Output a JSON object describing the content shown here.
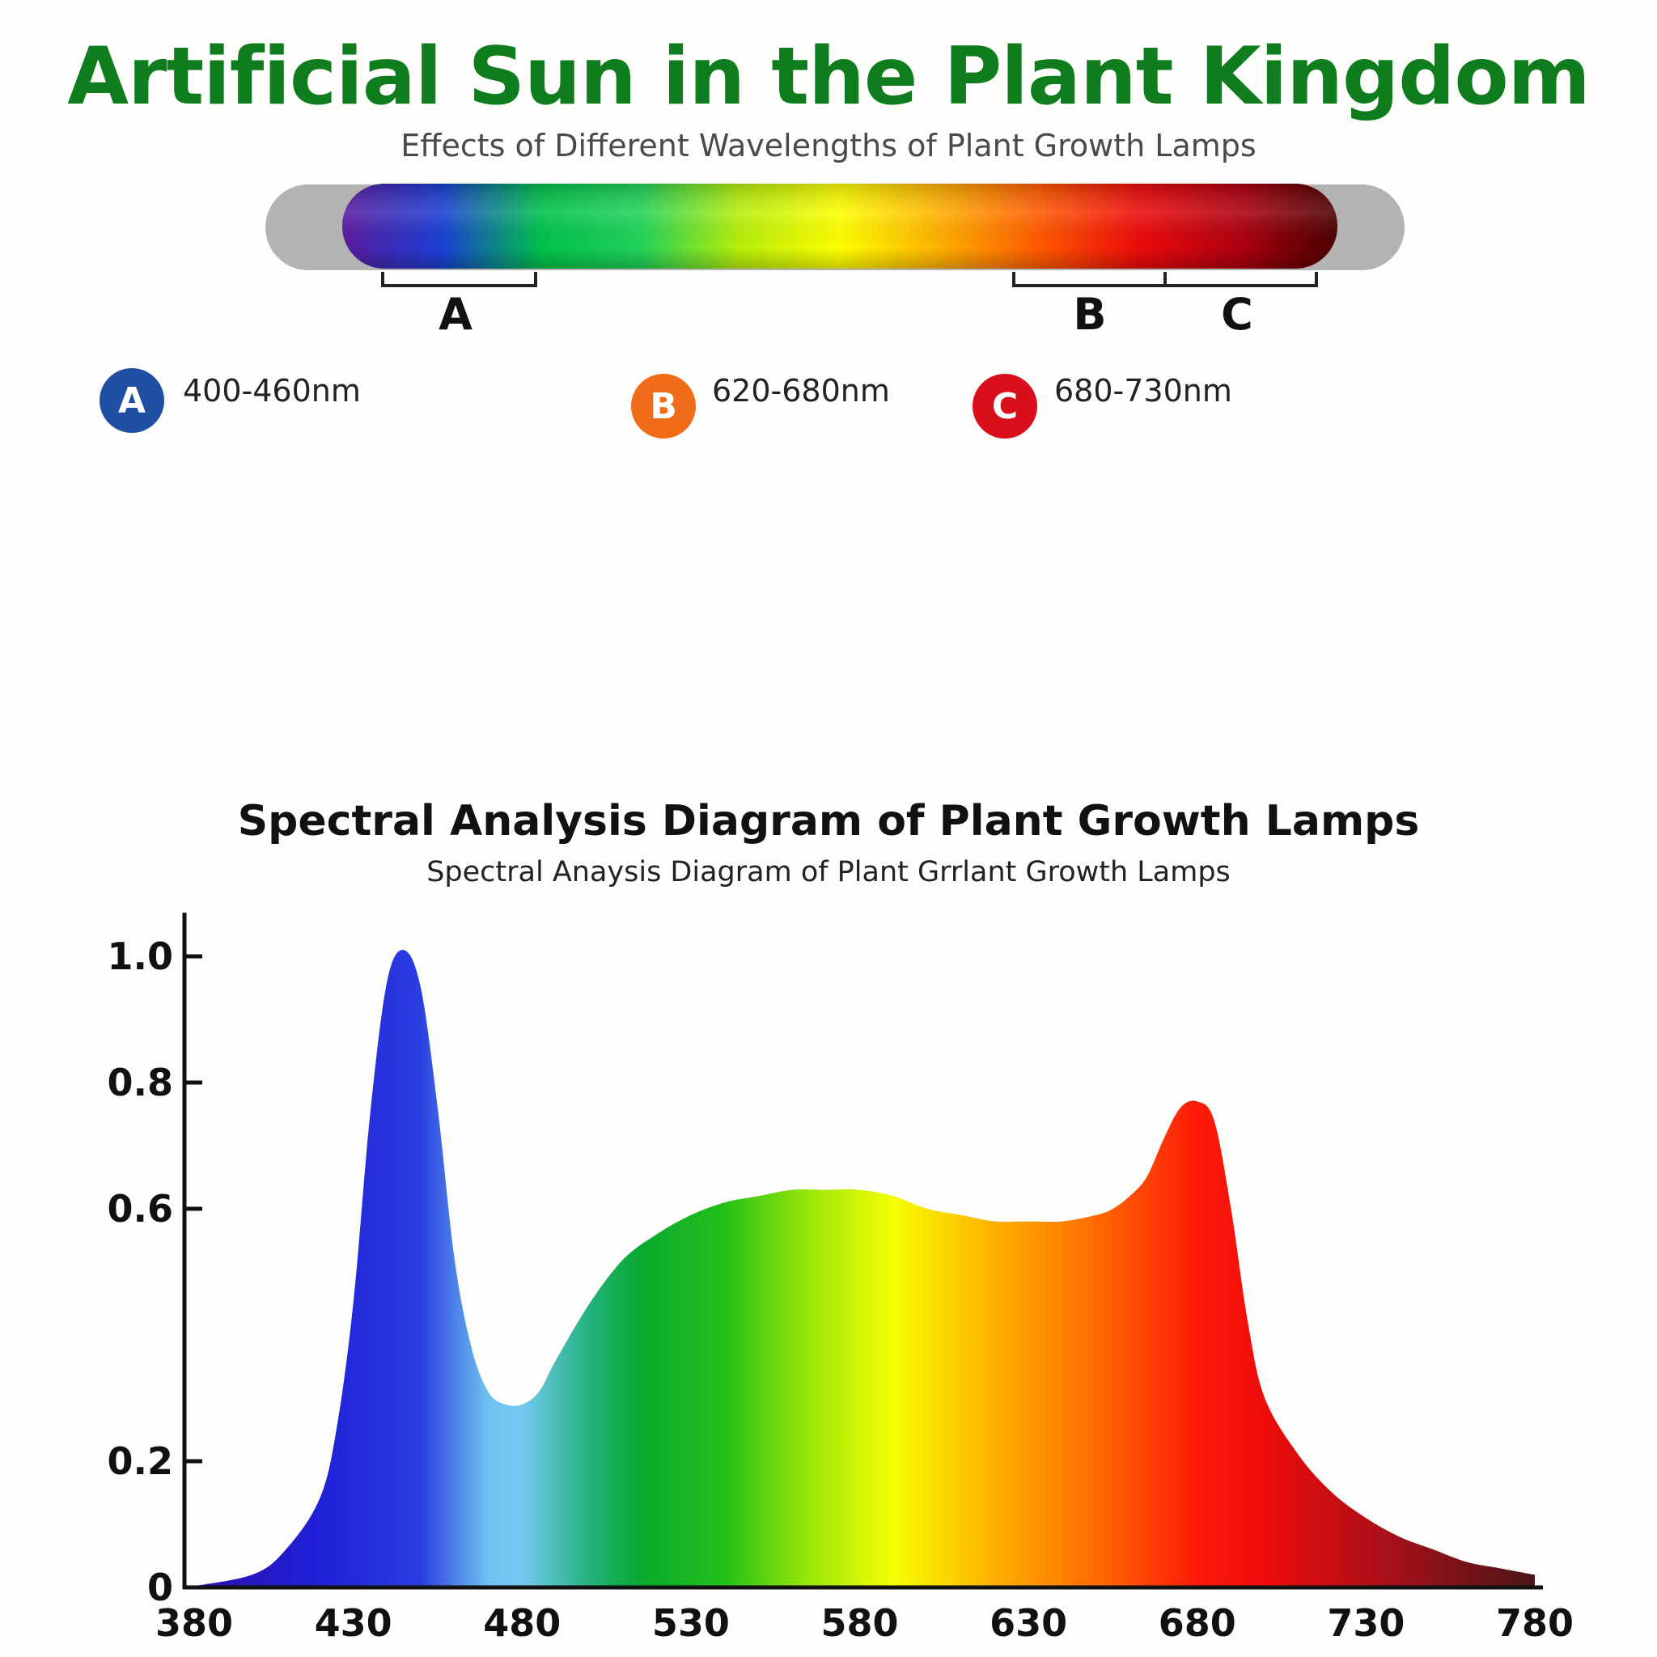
{
  "header": {
    "title": "Artificial Sun in the Plant Kingdom",
    "subtitle": "Effects of Different Wavelengths of Plant Growth Lamps"
  },
  "lamp": {
    "brackets": [
      "A",
      "B",
      "C"
    ],
    "gradient_colors": [
      "#5b1a9e",
      "#1a3fd6",
      "#00c24a",
      "#22d35a",
      "#b8ef0a",
      "#ffff00",
      "#ffb000",
      "#ff5a00",
      "#ee0b0b",
      "#b00010",
      "#4a0000"
    ]
  },
  "legend": [
    {
      "letter": "A",
      "range": "400-460nm",
      "color": "#1f4fa2"
    },
    {
      "letter": "B",
      "range": "620-680nm",
      "color": "#f06c1a"
    },
    {
      "letter": "C",
      "range": "680-730nm",
      "color": "#d9101b"
    }
  ],
  "chart_data": {
    "type": "area",
    "title": "Spectral Analysis Diagram of Plant Growth Lamps",
    "subtitle": "Spectral Anaysis Diagram of Plant Grrlant Growth Lamps",
    "xlabel": "",
    "ylabel": "",
    "xlim": [
      380,
      780
    ],
    "ylim": [
      0,
      1.0
    ],
    "x_ticks": [
      380,
      430,
      480,
      530,
      580,
      630,
      680,
      730,
      780
    ],
    "x_tick_labels": [
      "380",
      "430",
      "480",
      "530",
      "580",
      "630",
      "680",
      "730",
      "780"
    ],
    "y_ticks": [
      0,
      0.2,
      0.6,
      0.8,
      1.0
    ],
    "y_tick_labels": [
      "0",
      "0.2",
      "0.6",
      "0.8",
      "1.0"
    ],
    "grid": false,
    "series": [
      {
        "x": [
          380,
          400,
          410,
          420,
          425,
          430,
          435,
          440,
          445,
          450,
          455,
          460,
          465,
          470,
          475,
          480,
          485,
          490,
          500,
          510,
          520,
          530,
          540,
          550,
          560,
          570,
          580,
          590,
          600,
          610,
          620,
          630,
          640,
          650,
          655,
          660,
          665,
          670,
          675,
          680,
          685,
          690,
          695,
          700,
          710,
          720,
          730,
          740,
          750,
          760,
          770,
          780
        ],
        "values": [
          0.0,
          0.02,
          0.06,
          0.14,
          0.25,
          0.45,
          0.75,
          0.96,
          1.01,
          0.95,
          0.76,
          0.52,
          0.38,
          0.31,
          0.29,
          0.29,
          0.31,
          0.36,
          0.45,
          0.52,
          0.56,
          0.59,
          0.61,
          0.62,
          0.63,
          0.63,
          0.63,
          0.62,
          0.6,
          0.59,
          0.58,
          0.58,
          0.58,
          0.59,
          0.6,
          0.62,
          0.65,
          0.71,
          0.76,
          0.77,
          0.74,
          0.6,
          0.42,
          0.3,
          0.21,
          0.15,
          0.11,
          0.08,
          0.06,
          0.04,
          0.03,
          0.02
        ]
      }
    ]
  }
}
